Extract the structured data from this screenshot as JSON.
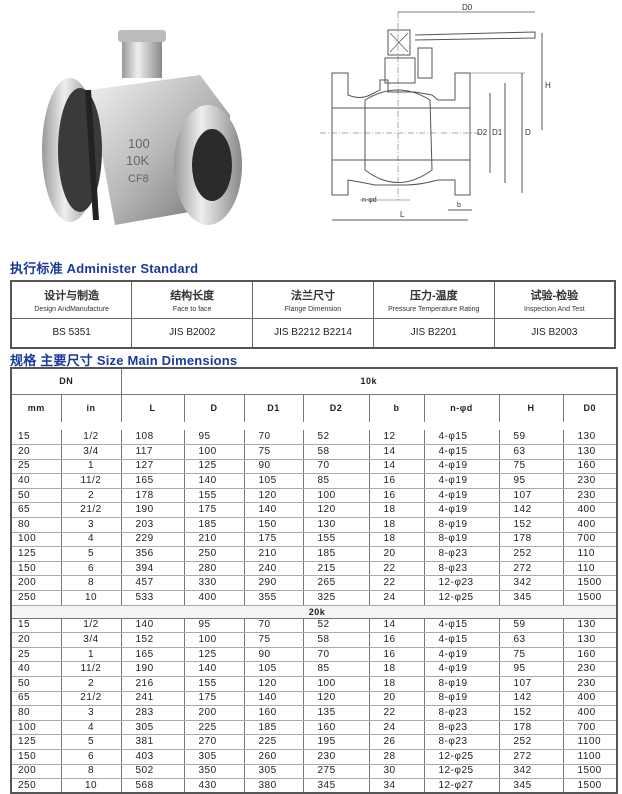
{
  "drawing": {
    "labels": {
      "D0": "D0",
      "H": "H",
      "D2": "D2",
      "D1": "D1",
      "D": "D",
      "nd": "n-φd",
      "b": "b",
      "L": "L"
    }
  },
  "photo": {
    "body_marking": [
      "100",
      "10K",
      "CF8"
    ]
  },
  "standard": {
    "title": "执行标准   Administer Standard",
    "columns": [
      {
        "zh": "设计与制造",
        "en": "Design AndManufacture",
        "value": "BS 5351"
      },
      {
        "zh": "结构长度",
        "en": "Face to face",
        "value": "JIS B2002"
      },
      {
        "zh": "法兰尺寸",
        "en": "Flange Dimension",
        "value": "JIS B2212 B2214"
      },
      {
        "zh": "压力-温度",
        "en": "Pressure Temperature Rating",
        "value": "JIS B2201"
      },
      {
        "zh": "试验-检验",
        "en": "Inspection And Test",
        "value": "JIS B2003"
      }
    ]
  },
  "dimensions": {
    "title": "规格  主要尺寸 Size Main Dimensions",
    "dn_header": "DN",
    "class_10k": "10k",
    "class_20k": "20k",
    "columns": [
      "mm",
      "in",
      "L",
      "D",
      "D1",
      "D2",
      "b",
      "n-φd",
      "H",
      "D0"
    ],
    "rows_10k": [
      [
        "15",
        "1/2",
        "108",
        "95",
        "70",
        "52",
        "12",
        "4-φ15",
        "59",
        "130"
      ],
      [
        "20",
        "3/4",
        "117",
        "100",
        "75",
        "58",
        "14",
        "4-φ15",
        "63",
        "130"
      ],
      [
        "25",
        "1",
        "127",
        "125",
        "90",
        "70",
        "14",
        "4-φ19",
        "75",
        "160"
      ],
      [
        "40",
        "11/2",
        "165",
        "140",
        "105",
        "85",
        "16",
        "4-φ19",
        "95",
        "230"
      ],
      [
        "50",
        "2",
        "178",
        "155",
        "120",
        "100",
        "16",
        "4-φ19",
        "107",
        "230"
      ],
      [
        "65",
        "21/2",
        "190",
        "175",
        "140",
        "120",
        "18",
        "4-φ19",
        "142",
        "400"
      ],
      [
        "80",
        "3",
        "203",
        "185",
        "150",
        "130",
        "18",
        "8-φ19",
        "152",
        "400"
      ],
      [
        "100",
        "4",
        "229",
        "210",
        "175",
        "155",
        "18",
        "8-φ19",
        "178",
        "700"
      ],
      [
        "125",
        "5",
        "356",
        "250",
        "210",
        "185",
        "20",
        "8-φ23",
        "252",
        "110"
      ],
      [
        "150",
        "6",
        "394",
        "280",
        "240",
        "215",
        "22",
        "8-φ23",
        "272",
        "110"
      ],
      [
        "200",
        "8",
        "457",
        "330",
        "290",
        "265",
        "22",
        "12-φ23",
        "342",
        "1500"
      ],
      [
        "250",
        "10",
        "533",
        "400",
        "355",
        "325",
        "24",
        "12-φ25",
        "345",
        "1500"
      ]
    ],
    "rows_20k": [
      [
        "15",
        "1/2",
        "140",
        "95",
        "70",
        "52",
        "14",
        "4-φ15",
        "59",
        "130"
      ],
      [
        "20",
        "3/4",
        "152",
        "100",
        "75",
        "58",
        "16",
        "4-φ15",
        "63",
        "130"
      ],
      [
        "25",
        "1",
        "165",
        "125",
        "90",
        "70",
        "16",
        "4-φ19",
        "75",
        "160"
      ],
      [
        "40",
        "11/2",
        "190",
        "140",
        "105",
        "85",
        "18",
        "4-φ19",
        "95",
        "230"
      ],
      [
        "50",
        "2",
        "216",
        "155",
        "120",
        "100",
        "18",
        "8-φ19",
        "107",
        "230"
      ],
      [
        "65",
        "21/2",
        "241",
        "175",
        "140",
        "120",
        "20",
        "8-φ19",
        "142",
        "400"
      ],
      [
        "80",
        "3",
        "283",
        "200",
        "160",
        "135",
        "22",
        "8-φ23",
        "152",
        "400"
      ],
      [
        "100",
        "4",
        "305",
        "225",
        "185",
        "160",
        "24",
        "8-φ23",
        "178",
        "700"
      ],
      [
        "125",
        "5",
        "381",
        "270",
        "225",
        "195",
        "26",
        "8-φ23",
        "252",
        "1100"
      ],
      [
        "150",
        "6",
        "403",
        "305",
        "260",
        "230",
        "28",
        "12-φ25",
        "272",
        "1100"
      ],
      [
        "200",
        "8",
        "502",
        "350",
        "305",
        "275",
        "30",
        "12-φ25",
        "342",
        "1500"
      ],
      [
        "250",
        "10",
        "568",
        "430",
        "380",
        "345",
        "34",
        "12-φ27",
        "345",
        "1500"
      ]
    ]
  }
}
